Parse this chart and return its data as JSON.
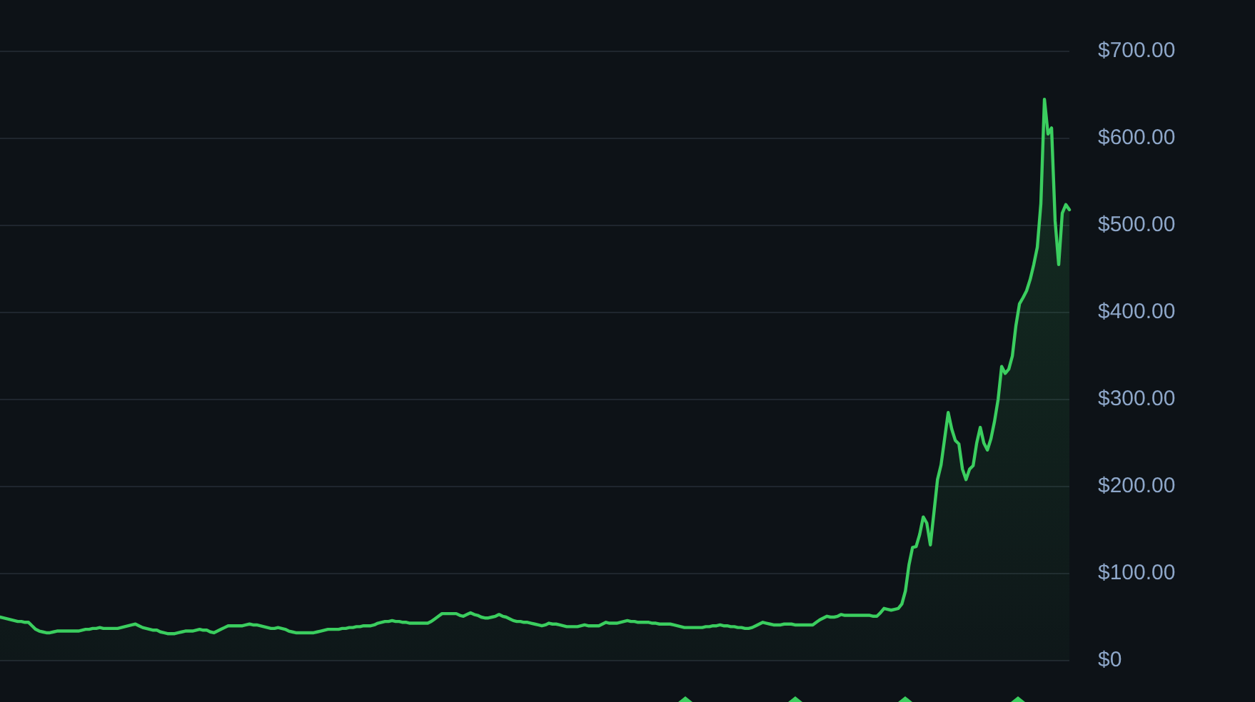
{
  "chart_data": {
    "type": "area",
    "color": "#3bce5f",
    "marker": "none",
    "grid": "y",
    "tick_labels": "y",
    "categories": [
      null,
      null,
      null,
      null,
      null,
      null,
      null,
      null,
      null,
      null,
      null,
      null,
      null,
      null,
      null,
      null,
      null,
      null,
      null,
      null,
      null,
      null,
      null,
      null,
      null,
      null,
      null,
      null,
      null,
      null,
      null,
      null,
      null,
      null,
      null,
      null,
      null,
      null,
      null,
      null,
      null,
      null,
      null,
      null,
      null,
      null,
      null,
      null,
      null,
      null,
      null,
      null,
      null,
      null,
      null,
      null,
      null,
      null,
      null,
      null,
      null,
      null,
      null,
      null,
      null,
      null,
      null,
      null,
      null,
      null,
      null,
      null,
      null,
      null,
      null,
      null,
      null,
      null,
      null,
      null,
      null,
      null,
      null,
      null,
      null,
      null,
      null,
      null,
      null,
      null,
      null,
      null,
      null,
      null,
      null,
      null,
      null,
      null,
      null,
      null,
      null,
      null,
      null,
      null,
      null,
      null,
      null,
      null,
      null,
      null,
      null,
      null,
      null,
      null,
      null,
      null,
      null,
      null,
      null,
      null,
      null,
      null,
      null,
      null,
      null,
      null,
      null,
      null,
      null,
      null,
      null,
      null,
      null,
      null,
      null,
      null,
      null,
      null,
      null,
      null,
      null,
      null,
      null,
      null,
      null,
      null,
      null,
      null,
      null,
      null,
      null,
      null,
      null,
      null,
      null,
      null,
      null,
      null,
      null,
      null,
      null,
      null,
      null,
      null,
      null,
      null,
      null,
      null,
      null,
      null,
      null,
      null,
      null,
      null,
      null,
      null,
      null,
      null,
      null,
      null,
      null,
      null,
      null,
      null,
      null,
      null,
      null,
      null,
      null,
      null,
      null,
      null,
      null,
      null,
      null,
      null,
      null,
      null,
      null,
      null,
      null,
      null,
      null,
      null,
      null,
      null,
      null,
      null,
      null,
      null,
      null,
      null,
      null,
      null,
      null,
      null,
      null,
      null,
      null,
      null,
      null,
      null,
      null,
      null,
      null,
      null,
      null,
      null,
      null,
      null,
      null,
      null,
      null,
      null,
      null,
      null,
      null,
      null,
      null,
      null,
      null,
      null,
      null,
      null,
      null,
      null,
      null,
      null,
      null,
      null,
      null,
      null,
      null,
      null,
      null,
      null,
      null,
      null,
      null,
      null,
      null,
      null,
      null,
      null,
      null,
      null,
      null,
      null,
      null,
      null,
      null,
      null,
      null,
      null,
      null,
      null,
      null,
      null,
      null,
      null,
      null,
      null,
      null,
      null,
      null,
      null,
      null,
      null,
      null,
      null,
      null,
      null,
      null,
      null,
      null,
      null,
      null,
      null,
      null,
      null,
      null
    ],
    "values": [
      50,
      49,
      48,
      47,
      46,
      45,
      45,
      44,
      44,
      40,
      36,
      34,
      33,
      32,
      32,
      33,
      34,
      34,
      34,
      34,
      34,
      34,
      34,
      35,
      36,
      36,
      37,
      37,
      38,
      37,
      37,
      37,
      37,
      37,
      38,
      39,
      40,
      41,
      42,
      40,
      38,
      37,
      36,
      35,
      35,
      33,
      32,
      31,
      31,
      31,
      32,
      33,
      34,
      34,
      34,
      35,
      36,
      35,
      35,
      33,
      32,
      34,
      36,
      38,
      40,
      40,
      40,
      40,
      40,
      41,
      42,
      41,
      41,
      40,
      39,
      38,
      37,
      37,
      38,
      37,
      36,
      34,
      33,
      32,
      32,
      32,
      32,
      32,
      32,
      33,
      34,
      35,
      36,
      36,
      36,
      36,
      37,
      37,
      38,
      38,
      39,
      39,
      40,
      40,
      40,
      41,
      43,
      44,
      45,
      45,
      46,
      45,
      45,
      44,
      44,
      43,
      43,
      43,
      43,
      43,
      43,
      45,
      48,
      51,
      54,
      54,
      54,
      54,
      54,
      52,
      51,
      53,
      55,
      53,
      52,
      50,
      49,
      49,
      50,
      51,
      53,
      51,
      50,
      48,
      46,
      45,
      45,
      44,
      44,
      43,
      42,
      41,
      40,
      41,
      43,
      42,
      42,
      41,
      40,
      39,
      39,
      39,
      39,
      40,
      41,
      40,
      40,
      40,
      40,
      42,
      44,
      43,
      43,
      43,
      44,
      45,
      46,
      45,
      45,
      44,
      44,
      44,
      44,
      43,
      43,
      42,
      42,
      42,
      42,
      41,
      40,
      39,
      38,
      38,
      38,
      38,
      38,
      38,
      39,
      39,
      40,
      40,
      41,
      40,
      40,
      39,
      39,
      38,
      38,
      37,
      37,
      38,
      40,
      42,
      44,
      43,
      42,
      41,
      41,
      41,
      42,
      42,
      42,
      41,
      41,
      41,
      41,
      41,
      41,
      44,
      47,
      49,
      51,
      50,
      50,
      51,
      53,
      52,
      52,
      52,
      52,
      52,
      52,
      52,
      52,
      51,
      51,
      55,
      60,
      59,
      58,
      59,
      60,
      65,
      80,
      110,
      130,
      131,
      145,
      165,
      158,
      133,
      170,
      208,
      225,
      255,
      285,
      266,
      253,
      249,
      220,
      208,
      220,
      224,
      250,
      268,
      250,
      242,
      255,
      275,
      300,
      338,
      330,
      335,
      350,
      385,
      410,
      417,
      425,
      438,
      455,
      475,
      525,
      645,
      605,
      612,
      505,
      455,
      514,
      524,
      518
    ],
    "ylim": [
      0,
      700
    ],
    "yticks": [
      {
        "value": 0,
        "label": "$0"
      },
      {
        "value": 100,
        "label": "$100.00"
      },
      {
        "value": 200,
        "label": "$200.00"
      },
      {
        "value": 300,
        "label": "$300.00"
      },
      {
        "value": 400,
        "label": "$400.00"
      },
      {
        "value": 500,
        "label": "$500.00"
      },
      {
        "value": 600,
        "label": "$600.00"
      },
      {
        "value": 700,
        "label": "$700.00"
      }
    ]
  }
}
